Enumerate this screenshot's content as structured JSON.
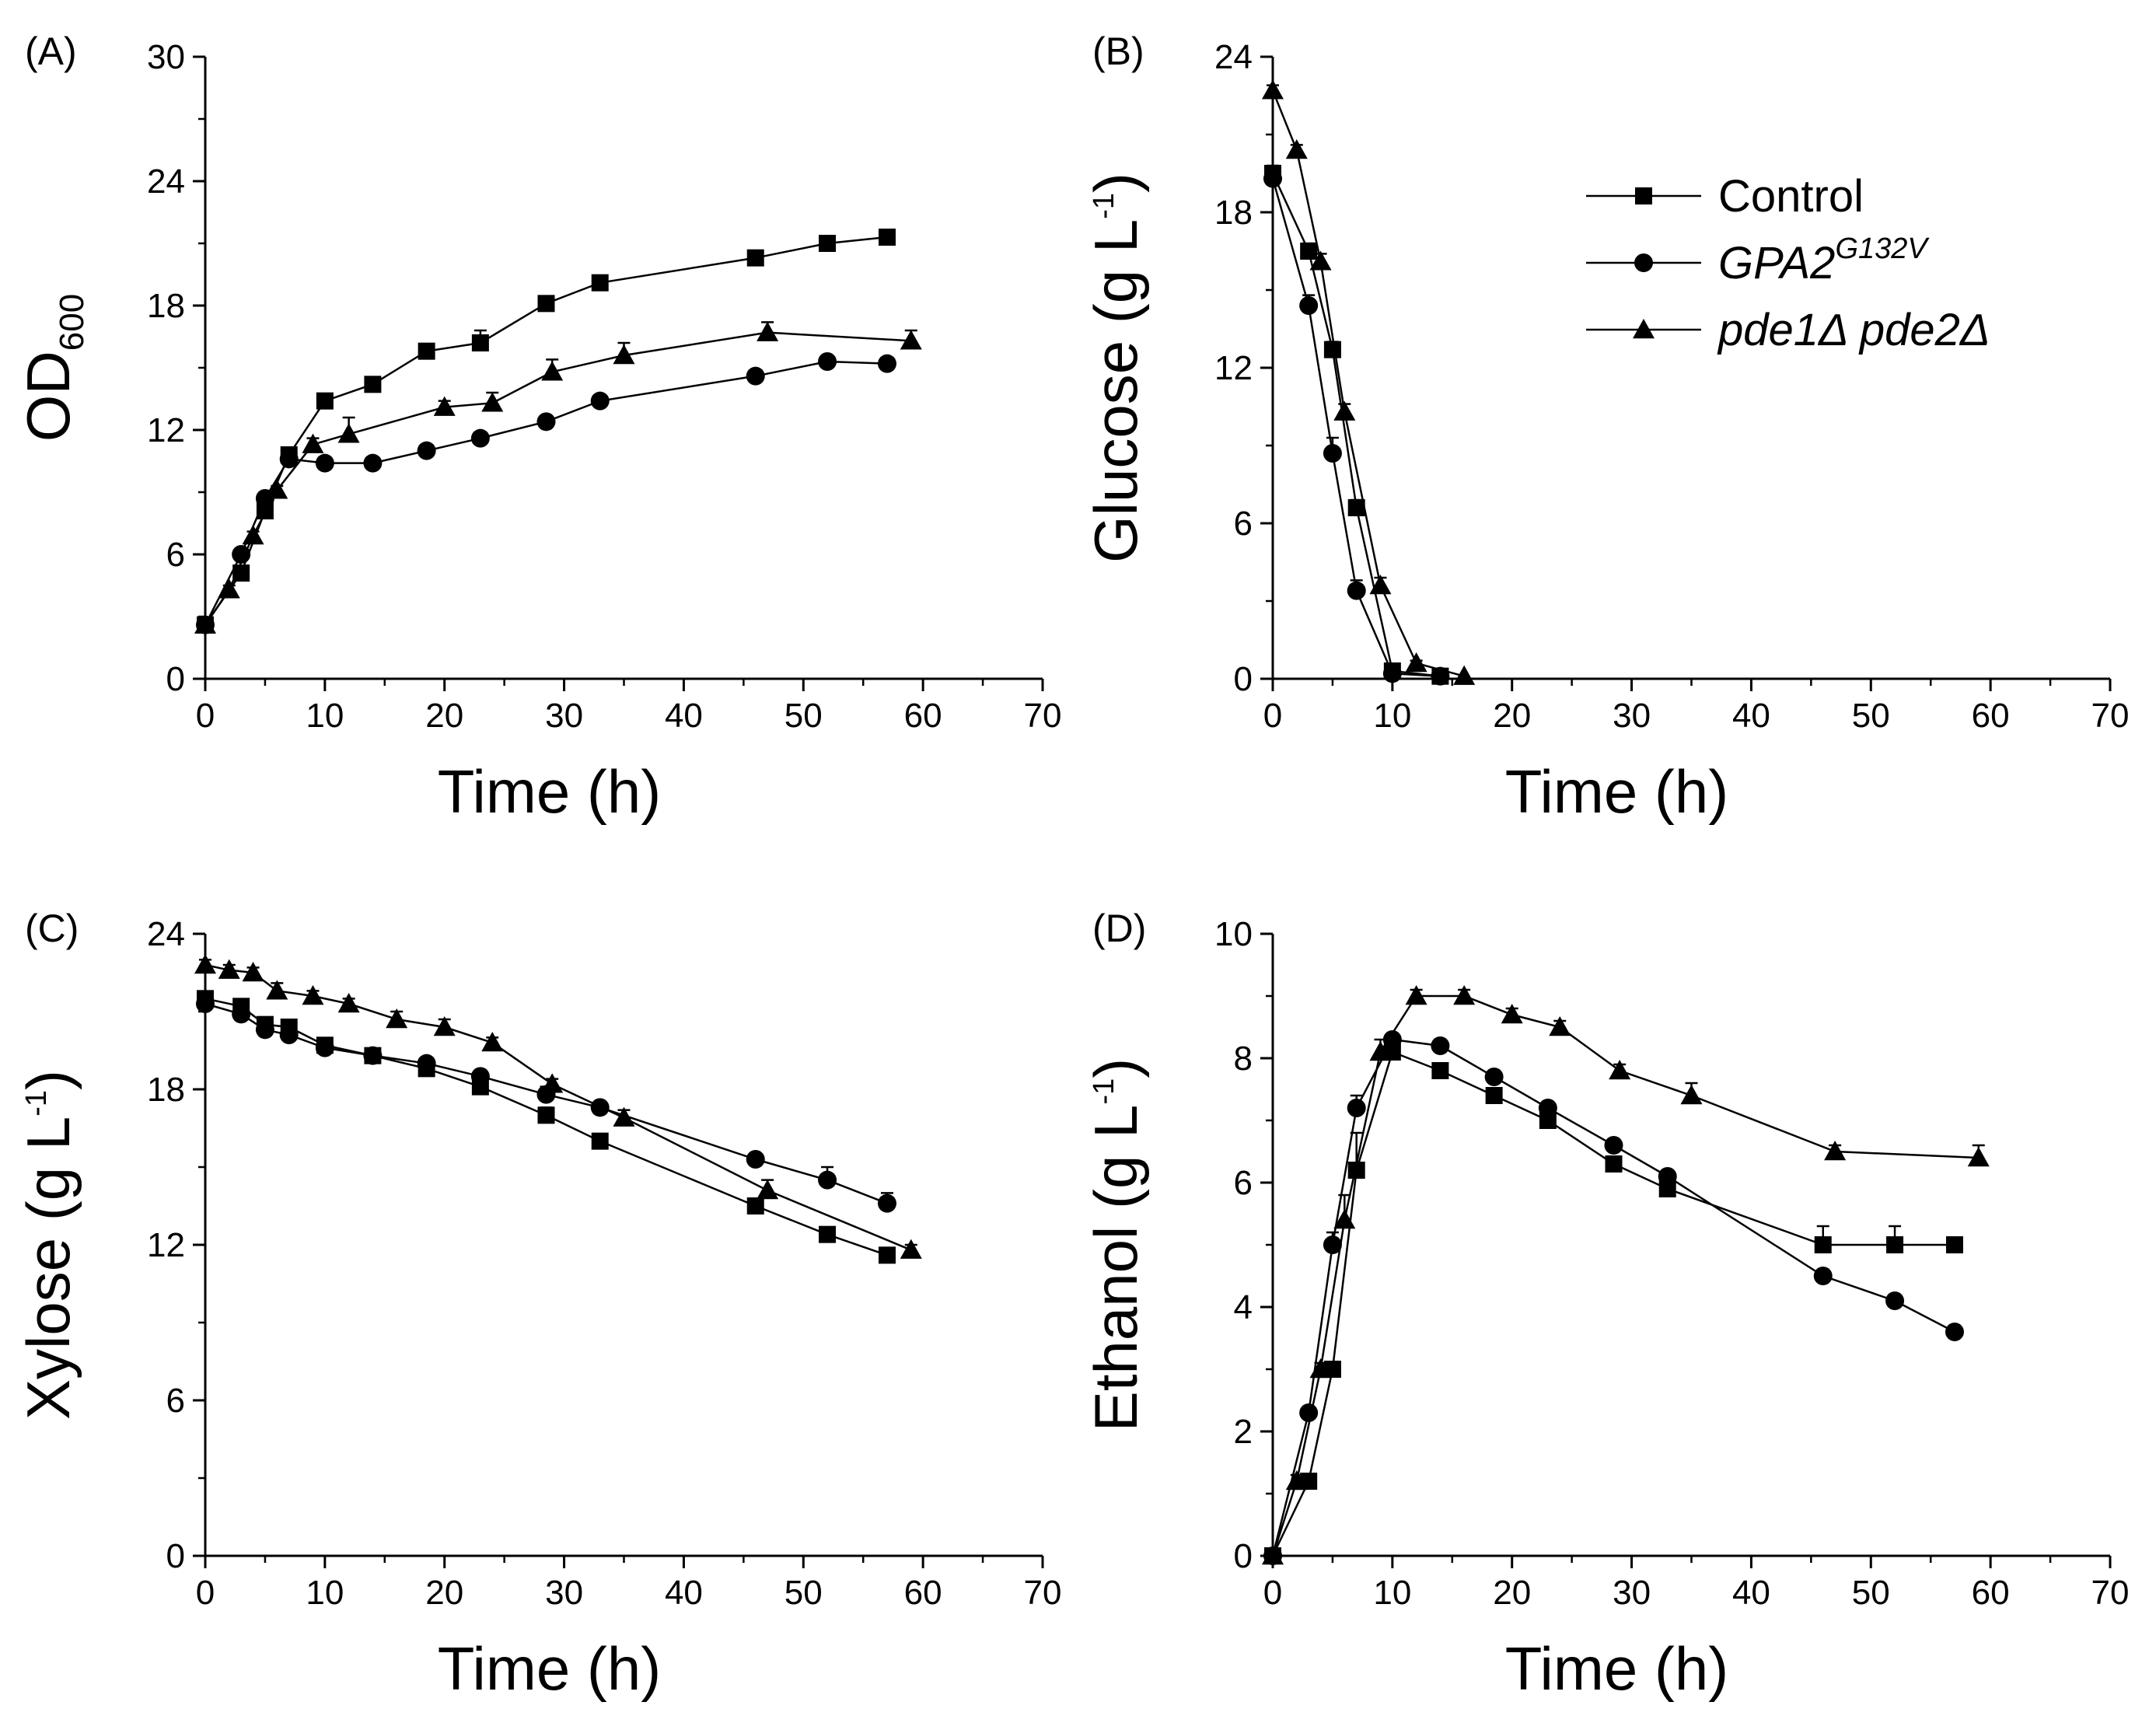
{
  "legend": {
    "items": [
      {
        "series": "control",
        "marker": "square",
        "label": "Control"
      },
      {
        "series": "gpa2",
        "marker": "circle",
        "label_main": "GPA2",
        "label_sup": "G132V"
      },
      {
        "series": "pde",
        "marker": "triangle",
        "label": "pde1Δ pde2Δ"
      }
    ]
  },
  "chart_data": [
    {
      "id": "A",
      "type": "line",
      "panel_label": "(A)",
      "ylabel_main": "OD",
      "ylabel_sub": "600",
      "xlabel": "Time (h)",
      "xlim": [
        0,
        70
      ],
      "ylim": [
        0,
        30
      ],
      "xticks": [
        0,
        10,
        20,
        30,
        40,
        50,
        60,
        70
      ],
      "yticks": [
        0,
        6,
        12,
        18,
        24,
        30
      ],
      "series": [
        {
          "name": "Control",
          "marker": "square",
          "x": [
            0,
            3,
            5,
            7,
            10,
            14,
            18.5,
            23,
            28.5,
            33,
            46,
            52,
            57
          ],
          "y": [
            2.6,
            5.1,
            8.1,
            10.8,
            13.4,
            14.2,
            15.8,
            16.2,
            18.1,
            19.1,
            20.3,
            21.0,
            21.3
          ],
          "err": [
            0,
            0.3,
            0.3,
            0.3,
            0.2,
            0.2,
            0.2,
            0.6,
            0.2,
            0.2,
            0.2,
            0.2,
            0.2
          ]
        },
        {
          "name": "GPA2G132V",
          "marker": "circle",
          "x": [
            0,
            3,
            5,
            7,
            10,
            14,
            18.5,
            23,
            28.5,
            33,
            46,
            52,
            57
          ],
          "y": [
            2.6,
            6.0,
            8.7,
            10.6,
            10.4,
            10.4,
            11.0,
            11.6,
            12.4,
            13.4,
            14.6,
            15.3,
            15.2
          ],
          "err": [
            0,
            0.2,
            0.3,
            0.2,
            0.2,
            0.2,
            0.2,
            0.2,
            0.2,
            0.2,
            0.2,
            0.2,
            0.2
          ]
        },
        {
          "name": "pde1Δ pde2Δ",
          "marker": "triangle",
          "x": [
            0,
            2,
            4,
            6,
            9,
            12,
            20,
            24,
            29,
            35,
            47,
            59
          ],
          "y": [
            2.6,
            4.3,
            6.9,
            9.1,
            11.3,
            11.8,
            13.1,
            13.3,
            14.8,
            15.6,
            16.7,
            16.3
          ],
          "err": [
            0,
            0.2,
            0.2,
            0.2,
            0.3,
            0.8,
            0.3,
            0.5,
            0.6,
            0.6,
            0.5,
            0.5
          ]
        }
      ]
    },
    {
      "id": "B",
      "type": "line",
      "panel_label": "(B)",
      "ylabel_main": "Glucose (g L",
      "ylabel_sup": "-1",
      "ylabel_tail": ")",
      "xlabel": "Time (h)",
      "xlim": [
        0,
        70
      ],
      "ylim": [
        0,
        24
      ],
      "xticks": [
        0,
        10,
        20,
        30,
        40,
        50,
        60,
        70
      ],
      "yticks": [
        0,
        6,
        12,
        18,
        24
      ],
      "series": [
        {
          "name": "Control",
          "marker": "square",
          "x": [
            0,
            3,
            5,
            7,
            10,
            14
          ],
          "y": [
            19.5,
            16.5,
            12.7,
            6.6,
            0.3,
            0.1
          ],
          "err": [
            0.3,
            0.3,
            0.3,
            0.3,
            0,
            0
          ]
        },
        {
          "name": "GPA2G132V",
          "marker": "circle",
          "x": [
            0,
            3,
            5,
            7,
            10,
            14
          ],
          "y": [
            19.3,
            14.4,
            8.7,
            3.4,
            0.2,
            0.1
          ],
          "err": [
            0.3,
            0.4,
            0.6,
            0.4,
            0,
            0
          ]
        },
        {
          "name": "pde1Δ pde2Δ",
          "marker": "triangle",
          "x": [
            0,
            2,
            4,
            6,
            9,
            12,
            16
          ],
          "y": [
            22.7,
            20.4,
            16.1,
            10.3,
            3.6,
            0.6,
            0.1
          ],
          "err": [
            0.2,
            0.2,
            0.3,
            0.3,
            0.3,
            0.1,
            0
          ]
        }
      ]
    },
    {
      "id": "C",
      "type": "line",
      "panel_label": "(C)",
      "ylabel_main": "Xylose (g L",
      "ylabel_sup": "-1",
      "ylabel_tail": ")",
      "xlabel": "Time (h)",
      "xlim": [
        0,
        70
      ],
      "ylim": [
        0,
        24
      ],
      "xticks": [
        0,
        10,
        20,
        30,
        40,
        50,
        60,
        70
      ],
      "yticks": [
        0,
        6,
        12,
        18,
        24
      ],
      "series": [
        {
          "name": "Control",
          "marker": "square",
          "x": [
            0,
            3,
            5,
            7,
            10,
            14,
            18.5,
            23,
            28.5,
            33,
            46,
            52,
            57
          ],
          "y": [
            21.5,
            21.2,
            20.5,
            20.4,
            19.7,
            19.3,
            18.8,
            18.1,
            17.0,
            16.0,
            13.5,
            12.4,
            11.6
          ],
          "err": [
            0.2,
            0.2,
            0.2,
            0.2,
            0.2,
            0.2,
            0.2,
            0.2,
            0.3,
            0.2,
            0.2,
            0.2,
            0.2
          ]
        },
        {
          "name": "GPA2G132V",
          "marker": "circle",
          "x": [
            0,
            3,
            5,
            7,
            10,
            14,
            18.5,
            23,
            28.5,
            33,
            46,
            52,
            57
          ],
          "y": [
            21.3,
            20.9,
            20.3,
            20.1,
            19.6,
            19.3,
            19.0,
            18.5,
            17.8,
            17.3,
            15.3,
            14.5,
            13.6
          ],
          "err": [
            0.2,
            0.2,
            0.2,
            0.2,
            0.2,
            0.2,
            0.2,
            0.2,
            0.3,
            0.2,
            0.2,
            0.5,
            0.4
          ]
        },
        {
          "name": "pde1Δ pde2Δ",
          "marker": "triangle",
          "x": [
            0,
            2,
            4,
            6,
            9,
            12,
            16,
            20,
            24,
            29,
            35,
            47,
            59
          ],
          "y": [
            22.8,
            22.6,
            22.5,
            21.8,
            21.6,
            21.3,
            20.7,
            20.4,
            19.8,
            18.2,
            16.9,
            14.1,
            11.8
          ],
          "err": [
            0.2,
            0.2,
            0.2,
            0.3,
            0.2,
            0.2,
            0.3,
            0.3,
            0.2,
            0.2,
            0.3,
            0.4,
            0.2
          ]
        }
      ]
    },
    {
      "id": "D",
      "type": "line",
      "panel_label": "(D)",
      "ylabel_main": "Ethanol (g L",
      "ylabel_sup": "-1",
      "ylabel_tail": ")",
      "xlabel": "Time (h)",
      "xlim": [
        0,
        70
      ],
      "ylim": [
        0,
        10
      ],
      "xticks": [
        0,
        10,
        20,
        30,
        40,
        50,
        60,
        70
      ],
      "yticks": [
        0,
        2,
        4,
        6,
        8,
        10
      ],
      "series": [
        {
          "name": "Control",
          "marker": "square",
          "x": [
            0,
            3,
            5,
            7,
            10,
            14,
            18.5,
            23,
            28.5,
            33,
            46,
            52,
            57
          ],
          "y": [
            0,
            1.2,
            3.0,
            6.2,
            8.1,
            7.8,
            7.4,
            7.0,
            6.3,
            5.9,
            5.0,
            5.0,
            5.0
          ],
          "err": [
            0,
            0.05,
            0.1,
            0.6,
            0.1,
            0.1,
            0.1,
            0.1,
            0.1,
            0.1,
            0.3,
            0.3,
            0.1
          ]
        },
        {
          "name": "GPA2G132V",
          "marker": "circle",
          "x": [
            0,
            3,
            5,
            7,
            10,
            14,
            18.5,
            23,
            28.5,
            33,
            46,
            52,
            57
          ],
          "y": [
            0,
            2.3,
            5.0,
            7.2,
            8.3,
            8.2,
            7.7,
            7.2,
            6.6,
            6.1,
            4.5,
            4.1,
            3.6
          ],
          "err": [
            0,
            0.1,
            0.2,
            0.2,
            0.1,
            0.1,
            0.1,
            0.1,
            0.1,
            0.1,
            0.1,
            0.1,
            0.1
          ]
        },
        {
          "name": "pde1Δ pde2Δ",
          "marker": "triangle",
          "x": [
            0,
            2,
            4,
            6,
            9,
            12,
            16,
            20,
            24,
            29,
            35,
            47,
            59
          ],
          "y": [
            0,
            1.2,
            3.0,
            5.4,
            8.1,
            9.0,
            9.0,
            8.7,
            8.5,
            7.8,
            7.4,
            6.5,
            6.4
          ],
          "err": [
            0,
            0.1,
            0.1,
            0.4,
            0.2,
            0.1,
            0.1,
            0.1,
            0.1,
            0.1,
            0.2,
            0.1,
            0.2
          ]
        }
      ]
    }
  ]
}
